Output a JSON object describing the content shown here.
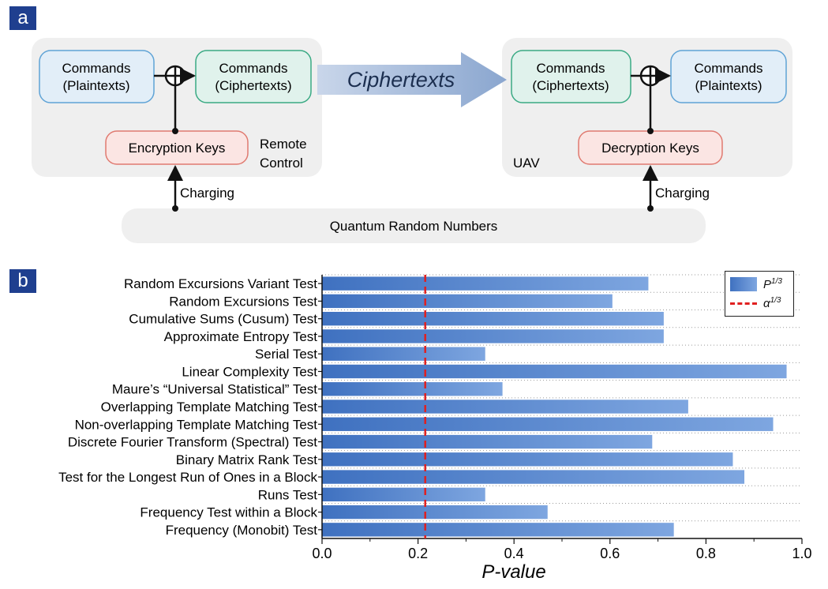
{
  "panels": {
    "a": "a",
    "b": "b"
  },
  "diagram": {
    "left_group": {
      "plaintext": [
        "Commands",
        "(Plaintexts)"
      ],
      "ciphertext": [
        "Commands",
        "(Ciphertexts)"
      ],
      "keys": "Encryption Keys",
      "label": [
        "Remote",
        "Control"
      ]
    },
    "right_group": {
      "ciphertext": [
        "Commands",
        "(Ciphertexts)"
      ],
      "plaintext": [
        "Commands",
        "(Plaintexts)"
      ],
      "keys": "Decryption Keys",
      "label": "UAV"
    },
    "arrow_label": "Ciphertexts",
    "charging_left": "Charging",
    "charging_right": "Charging",
    "qrn": "Quantum Random Numbers",
    "colors": {
      "plain_fill": "#e2eef8",
      "plain_stroke": "#5fa3d6",
      "cipher_fill": "#e0f2ec",
      "cipher_stroke": "#3aaa84",
      "key_fill": "#fbe5e3",
      "key_stroke": "#e07a70",
      "group_fill": "#efefef"
    }
  },
  "chart_data": {
    "type": "bar",
    "orientation": "horizontal",
    "categories": [
      "Random Excursions Variant Test",
      "Random Excursions Test",
      "Cumulative Sums (Cusum) Test",
      "Approximate Entropy Test",
      "Serial Test",
      "Linear Complexity Test",
      "Maure’s “Universal Statistical” Test",
      "Overlapping Template Matching Test",
      "Non-overlapping Template Matching Test",
      "Discrete Fourier Transform (Spectral) Test",
      "Binary Matrix Rank Test",
      "Test for the Longest Run of Ones in a Block",
      "Runs Test",
      "Frequency Test within a Block",
      "Frequency (Monobit) Test"
    ],
    "values": [
      0.68,
      0.605,
      0.712,
      0.712,
      0.34,
      0.968,
      0.376,
      0.763,
      0.94,
      0.688,
      0.856,
      0.88,
      0.34,
      0.47,
      0.733
    ],
    "threshold": 0.215,
    "xlim": [
      0.0,
      1.0
    ],
    "xticks": [
      "0.0",
      "0.2",
      "0.4",
      "0.6",
      "0.8",
      "1.0"
    ],
    "xlabel": "P-value",
    "legend": {
      "bar": "P",
      "bar_sup": "1/3",
      "line": "α",
      "line_sup": "1/3",
      "position": "top-right"
    },
    "colors": {
      "bar": "#4472c4",
      "threshold": "#e02020"
    }
  }
}
